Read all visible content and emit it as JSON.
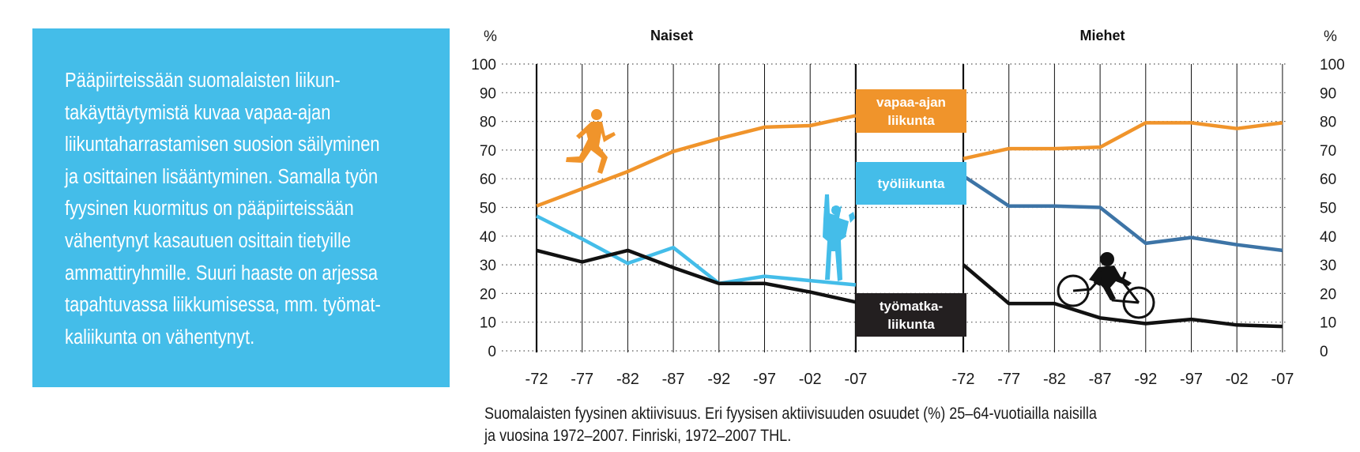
{
  "intro": {
    "lines": [
      "Pääpiirteissään suomalaisten liikun-",
      "takäyttäytymistä kuvaa vapaa-ajan",
      "liikuntaharrastamisen suosion säilyminen",
      "ja osittainen lisääntyminen. Samalla työn",
      "fyysinen kuormitus on pääpiirteissään",
      "vähentynyt kasautuen osittain tietyille",
      "ammattiryhmille. Suuri haaste on arjessa",
      "tapahtuvassa liikkumisessa, mm. työmat-",
      "kaliikunta on vähentynyt."
    ]
  },
  "caption": {
    "line1": "Suomalaisten fyysinen aktiivisuus. Eri fyysisen aktiivisuuden osuudet (%) 25–64-vuotiailla naisilla",
    "line2": "ja vuosina 1972–2007. Finriski, 1972–2007 THL."
  },
  "chart_data": {
    "type": "line",
    "ylabel": "%",
    "ylim": [
      0,
      100
    ],
    "yticks": [
      "0",
      "10",
      "20",
      "30",
      "40",
      "50",
      "60",
      "70",
      "80",
      "90",
      "100"
    ],
    "categories": [
      "-72",
      "-77",
      "-82",
      "-87",
      "-92",
      "-97",
      "-02",
      "-07"
    ],
    "grid": true,
    "panels": [
      {
        "title": "Naiset",
        "series": [
          {
            "name": "vapaa-ajan liikunta",
            "color": "#f0942b",
            "values": [
              50.5,
              56.5,
              62.5,
              69.5,
              74,
              78,
              78.5,
              82
            ]
          },
          {
            "name": "työliikunta",
            "color": "#44bde9",
            "values": [
              47,
              39,
              30.5,
              36,
              23.5,
              26,
              24.5,
              23
            ]
          },
          {
            "name": "työmatkaliikunta",
            "color": "#111111",
            "values": [
              35,
              31,
              35,
              29,
              23.5,
              23.5,
              20.5,
              17
            ]
          }
        ]
      },
      {
        "title": "Miehet",
        "series": [
          {
            "name": "vapaa-ajan liikunta",
            "color": "#f0942b",
            "values": [
              67,
              70.5,
              70.5,
              71,
              79.5,
              79.5,
              77.5,
              79.5
            ]
          },
          {
            "name": "työliikunta",
            "color": "#3d74a6",
            "values": [
              61,
              50.5,
              50.5,
              50,
              37.5,
              39.5,
              37,
              35
            ]
          },
          {
            "name": "työmatkaliikunta",
            "color": "#111111",
            "values": [
              30,
              16.5,
              16.5,
              11.5,
              9.5,
              11,
              9,
              8.5
            ]
          }
        ]
      }
    ],
    "legend": [
      {
        "lines": [
          "vapaa-ajan",
          "liikunta"
        ],
        "color": "#f0942b"
      },
      {
        "lines": [
          "työliikunta"
        ],
        "color": "#44bde9"
      },
      {
        "lines": [
          "työmatka-",
          "liikunta"
        ],
        "color": "#231f20"
      }
    ]
  }
}
